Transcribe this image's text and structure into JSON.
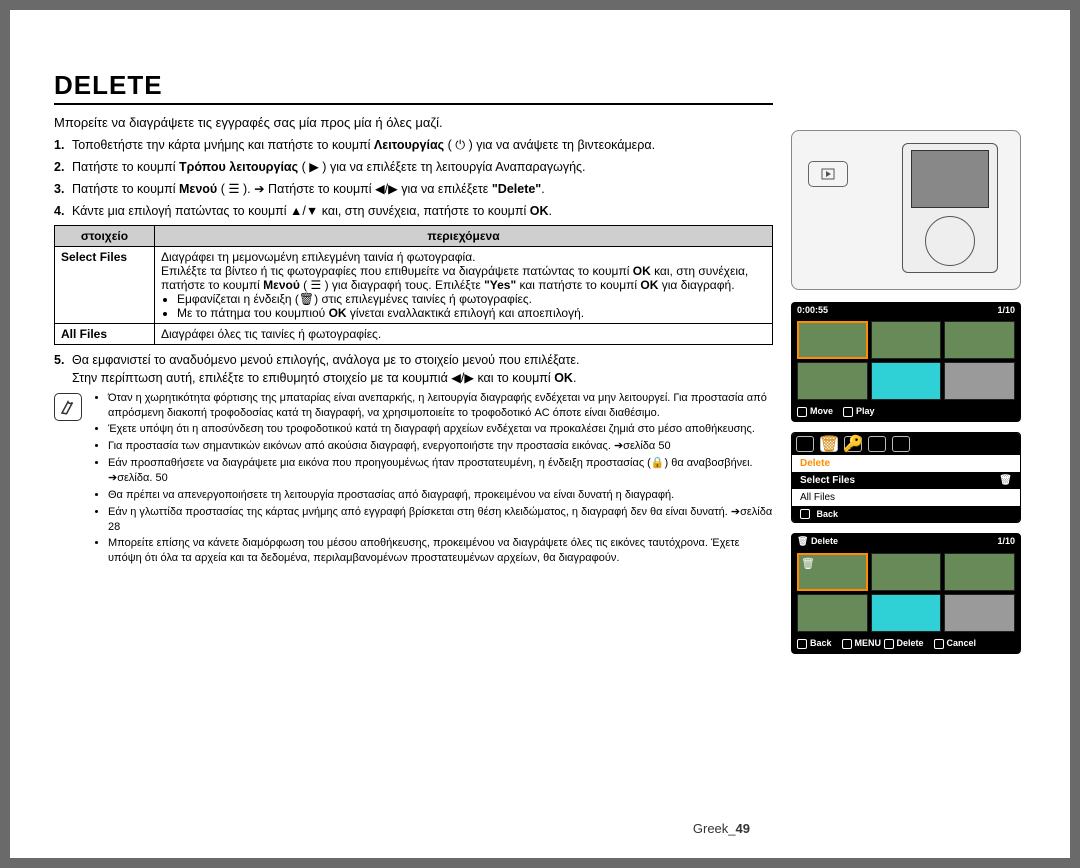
{
  "title": "DELETE",
  "intro": "Μπορείτε να διαγράψετε τις εγγραφές σας μία προς μία ή όλες μαζί.",
  "steps": [
    {
      "n": "1.",
      "html": "Τοποθετήστε την κάρτα μνήμης και πατήστε το κουμπί <b>Λειτουργίας</b> ( ⏻ ) για να ανάψετε τη βιντεοκάμερα."
    },
    {
      "n": "2.",
      "html": "Πατήστε το κουμπί <b>Τρόπου λειτουργίας</b> ( ▶ ) για να επιλέξετε τη λειτουργία Αναπαραγωγής."
    },
    {
      "n": "3.",
      "html": "Πατήστε το κουμπί <b>Μενού</b> ( ☰ ). ➔ Πατήστε το κουμπί ◀/▶ για να επιλέξετε <b>\"Delete\"</b>."
    },
    {
      "n": "4.",
      "html": "Κάντε μια επιλογή πατώντας το κουμπί ▲/▼ και, στη συνέχεια, πατήστε το κουμπί <b>OK</b>."
    }
  ],
  "table": {
    "h1": "στοιχείο",
    "h2": "περιεχόμενα",
    "rows": [
      {
        "k": "Select Files",
        "v": "Διαγράφει τη μεμονωμένη επιλεγμένη ταινία ή φωτογραφία.<br>Επιλέξτε τα βίντεο ή τις φωτογραφίες που επιθυμείτε να διαγράψετε πατώντας το κουμπί <b>OK</b> και, στη συνέχεια, πατήστε το κουμπί <b>Μενού</b> ( ☰ ) για διαγραφή τους. Επιλέξτε <b>\"Yes\"</b> και πατήστε το κουμπί <b>OK</b> για διαγραφή.<ul class='sub'><li>Εμφανίζεται η ένδειξη (🗑) στις επιλεγμένες ταινίες ή φωτογραφίες.</li><li>Με το πάτημα του κουμπιού <b>OK</b> γίνεται εναλλακτικά επιλογή και αποεπιλογή.</li></ul>"
      },
      {
        "k": "All Files",
        "v": "Διαγράφει όλες τις ταινίες ή φωτογραφίες."
      }
    ]
  },
  "step5": {
    "n": "5.",
    "html": "Θα εμφανιστεί το αναδυόμενο μενού επιλογής, ανάλογα με το στοιχείο μενού που επιλέξατε.<br>Στην περίπτωση αυτή, επιλέξτε το επιθυμητό στοιχείο με τα κουμπιά ◀/▶ και το κουμπί <b>OK</b>."
  },
  "notes": [
    "Όταν η χωρητικότητα φόρτισης της μπαταρίας είναι ανεπαρκής, η λειτουργία διαγραφής ενδέχεται να μην λειτουργεί. Για προστασία από απρόσμενη διακοπή τροφοδοσίας κατά τη διαγραφή, να χρησιμοποιείτε το τροφοδοτικό AC όποτε είναι διαθέσιμο.",
    "Έχετε υπόψη ότι η αποσύνδεση του τροφοδοτικού κατά τη διαγραφή αρχείων ενδέχεται να προκαλέσει ζημιά στο μέσο αποθήκευσης.",
    "Για προστασία των σημαντικών εικόνων από ακούσια διαγραφή, ενεργοποιήστε την προστασία εικόνας. ➔σελίδα 50",
    "Εάν προσπαθήσετε να διαγράψετε μια εικόνα που προηγουμένως ήταν προστατευμένη, η ένδειξη προστασίας (🔒) θα αναβοσβήνει. ➔σελίδα. 50",
    "Θα πρέπει να απενεργοποιήσετε τη λειτουργία προστασίας από διαγραφή, προκειμένου να είναι δυνατή η διαγραφή.",
    "Εάν η γλωττίδα προστασίας της κάρτας μνήμης από εγγραφή βρίσκεται στη θέση κλειδώματος, η διαγραφή δεν θα είναι δυνατή. ➔σελίδα 28",
    "Μπορείτε επίσης να κάνετε διαμόρφωση του μέσου αποθήκευσης, προκειμένου να διαγράψετε όλες τις εικόνες ταυτόχρονα. Έχετε υπόψη ότι όλα τα αρχεία και τα δεδομένα, περιλαμβανομένων προστατευμένων αρχείων, θα διαγραφούν."
  ],
  "footer_prefix": "Greek_",
  "footer_page": "49",
  "shot1": {
    "time": "0:00:55",
    "count": "1/10",
    "move": "Move",
    "play": "Play"
  },
  "menu": {
    "title": "Delete",
    "sel": "Select Files",
    "all": "All Files",
    "back": "Back"
  },
  "shot3": {
    "title": "Delete",
    "count": "1/10",
    "back": "Back",
    "delete": "Delete",
    "cancel": "Cancel"
  },
  "colors": {
    "accent": "#ff8c00",
    "headerbg": "#cfcfcf"
  }
}
